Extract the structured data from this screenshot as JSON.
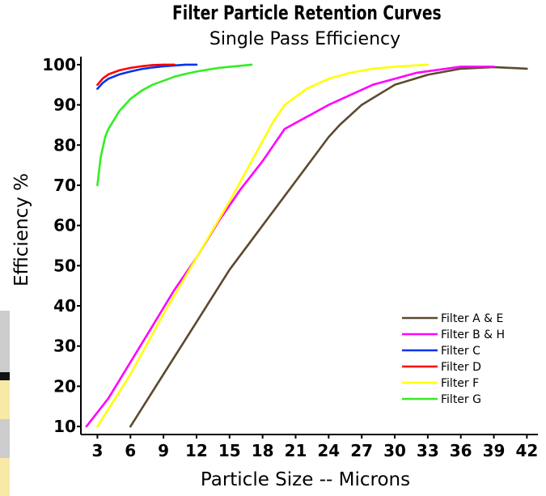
{
  "chart_data": {
    "type": "line",
    "title": "Filter Particle Retention Curves",
    "subtitle": "Single Pass Efficiency",
    "xlabel": "Particle Size -- Microns",
    "ylabel": "Efficiency %",
    "xlim": [
      1.5,
      43
    ],
    "ylim": [
      8,
      102
    ],
    "xticks": [
      3,
      6,
      9,
      12,
      15,
      18,
      21,
      24,
      27,
      30,
      33,
      36,
      39,
      42
    ],
    "yticks": [
      10,
      20,
      30,
      40,
      50,
      60,
      70,
      80,
      90,
      100
    ],
    "grid": false,
    "legend_position": "bottom-right",
    "series": [
      {
        "name": "Filter A & E",
        "color": "#5c4a2e",
        "x": [
          6,
          9,
          12,
          15,
          18,
          21,
          24,
          25,
          27,
          30,
          33,
          36,
          39,
          42
        ],
        "y": [
          10,
          23,
          36,
          49,
          60,
          71,
          82,
          85,
          90,
          95,
          97.5,
          99,
          99.4,
          99
        ]
      },
      {
        "name": "Filter B & H",
        "color": "#ff00ff",
        "x": [
          2,
          4,
          6,
          8,
          10,
          12,
          14,
          16,
          18,
          20,
          24,
          28,
          32,
          36,
          39
        ],
        "y": [
          10,
          17,
          26,
          35,
          44,
          52,
          61,
          69,
          76,
          84,
          90,
          95,
          98,
          99.5,
          99.5
        ]
      },
      {
        "name": "Filter C",
        "color": "#0033ee",
        "x": [
          3,
          3.5,
          4,
          5,
          6,
          7,
          8,
          9,
          10,
          11,
          12
        ],
        "y": [
          94,
          95.5,
          96.5,
          97.6,
          98.3,
          98.9,
          99.3,
          99.6,
          99.8,
          100,
          100
        ]
      },
      {
        "name": "Filter D",
        "color": "#ff0000",
        "x": [
          3,
          3.5,
          4,
          5,
          6,
          7,
          8,
          9,
          10
        ],
        "y": [
          95,
          96.6,
          97.6,
          98.6,
          99.2,
          99.6,
          99.9,
          100,
          100
        ]
      },
      {
        "name": "Filter F",
        "color": "#ffff00",
        "x": [
          3,
          6,
          9,
          12,
          15,
          17,
          19,
          20,
          22,
          24,
          26,
          28,
          30,
          33
        ],
        "y": [
          10,
          23,
          38,
          52,
          66,
          76,
          86,
          90,
          94,
          96.5,
          98,
          99,
          99.5,
          100
        ]
      },
      {
        "name": "Filter G",
        "color": "#33ee22",
        "x": [
          3,
          3.3,
          3.7,
          4,
          5,
          6,
          7,
          8,
          9,
          10,
          11,
          12,
          14,
          17
        ],
        "y": [
          70,
          77,
          82,
          84,
          88.5,
          91.5,
          93.5,
          95,
          96,
          97,
          97.7,
          98.3,
          99.2,
          100
        ]
      }
    ]
  }
}
